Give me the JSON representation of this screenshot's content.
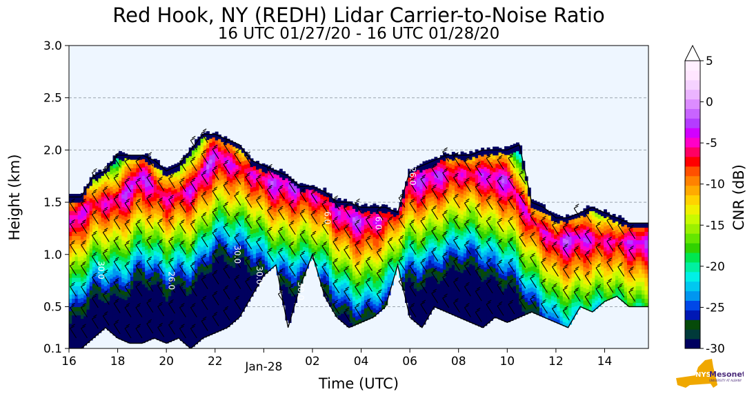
{
  "chart_data": {
    "type": "heatmap",
    "title": "Red Hook, NY (REDH) Lidar Carrier-to-Noise Ratio",
    "subtitle": "16 UTC 01/27/20 - 16 UTC 01/28/20",
    "xlabel": "Time (UTC)",
    "ylabel": "Height (km)",
    "x_ticks": [
      "16",
      "18",
      "20",
      "22",
      "Jan-28",
      "02",
      "04",
      "06",
      "08",
      "10",
      "12",
      "14"
    ],
    "x_tick_hours": [
      16,
      18,
      20,
      22,
      24,
      26,
      28,
      30,
      32,
      34,
      36,
      38
    ],
    "xlim_hours": [
      16,
      39.8
    ],
    "y_ticks": [
      "0.1",
      "0.5",
      "1.0",
      "1.5",
      "2.0",
      "2.5",
      "3.0"
    ],
    "y_tick_values": [
      0.1,
      0.5,
      1.0,
      1.5,
      2.0,
      2.5,
      3.0
    ],
    "ylim": [
      0.1,
      3.0
    ],
    "grid": "horizontal dashed",
    "colorbar": {
      "label": "CNR (dB)",
      "range": [
        -30,
        5
      ],
      "ticks": [
        "5",
        "0",
        "-5",
        "-10",
        "-15",
        "-20",
        "-25",
        "-30"
      ],
      "tick_values": [
        5,
        0,
        -5,
        -10,
        -15,
        -20,
        -25,
        -30
      ],
      "colors": [
        "#00005f",
        "#003a3a",
        "#064a0a",
        "#0018b4",
        "#0048e8",
        "#0096f0",
        "#00c8f0",
        "#00f0e6",
        "#00f0a0",
        "#00e650",
        "#30d200",
        "#64e600",
        "#9bf000",
        "#c8fa00",
        "#f0f000",
        "#ffd200",
        "#ffaa00",
        "#ff8200",
        "#ff5000",
        "#ff0000",
        "#ff0064",
        "#ff00c8",
        "#d200ff",
        "#b43cff",
        "#c864ff",
        "#dc8cff",
        "#ebb4ff",
        "#f5d2ff",
        "#ffe6ff",
        "#fff0ff"
      ]
    },
    "contour_labels": [
      "30.0",
      "26.0",
      "30.0",
      "30.0",
      "30.0",
      "6.0",
      "26.0",
      "6.0"
    ],
    "layer_top_km": [
      [
        16.0,
        1.55
      ],
      [
        16.5,
        1.55
      ],
      [
        17.0,
        1.75
      ],
      [
        17.5,
        1.8
      ],
      [
        18.0,
        1.95
      ],
      [
        18.5,
        1.95
      ],
      [
        19.0,
        1.95
      ],
      [
        19.5,
        1.9
      ],
      [
        20.0,
        1.8
      ],
      [
        20.5,
        1.85
      ],
      [
        21.0,
        2.0
      ],
      [
        21.5,
        2.15
      ],
      [
        22.0,
        2.15
      ],
      [
        22.5,
        2.1
      ],
      [
        23.0,
        2.05
      ],
      [
        23.5,
        1.9
      ],
      [
        24.0,
        1.85
      ],
      [
        24.5,
        1.8
      ],
      [
        25.0,
        1.75
      ],
      [
        25.5,
        1.65
      ],
      [
        26.0,
        1.65
      ],
      [
        26.5,
        1.6
      ],
      [
        27.0,
        1.5
      ],
      [
        27.5,
        1.5
      ],
      [
        28.0,
        1.45
      ],
      [
        28.5,
        1.45
      ],
      [
        29.0,
        1.45
      ],
      [
        29.5,
        1.4
      ],
      [
        30.0,
        1.8
      ],
      [
        30.5,
        1.85
      ],
      [
        31.0,
        1.9
      ],
      [
        31.5,
        1.95
      ],
      [
        32.0,
        1.95
      ],
      [
        32.5,
        1.95
      ],
      [
        33.0,
        2.0
      ],
      [
        33.5,
        2.0
      ],
      [
        34.0,
        2.0
      ],
      [
        34.5,
        2.05
      ],
      [
        35.0,
        1.5
      ],
      [
        35.5,
        1.45
      ],
      [
        36.0,
        1.35
      ],
      [
        36.5,
        1.35
      ],
      [
        37.0,
        1.4
      ],
      [
        37.5,
        1.45
      ],
      [
        38.0,
        1.4
      ],
      [
        38.5,
        1.35
      ],
      [
        39.0,
        1.3
      ],
      [
        39.8,
        1.3
      ]
    ],
    "layer_bottom_km": [
      [
        16.0,
        0.1
      ],
      [
        16.5,
        0.1
      ],
      [
        17.0,
        0.2
      ],
      [
        17.5,
        0.3
      ],
      [
        18.0,
        0.2
      ],
      [
        18.5,
        0.15
      ],
      [
        19.0,
        0.15
      ],
      [
        19.5,
        0.2
      ],
      [
        20.0,
        0.15
      ],
      [
        20.5,
        0.2
      ],
      [
        21.0,
        0.1
      ],
      [
        21.5,
        0.2
      ],
      [
        22.0,
        0.25
      ],
      [
        22.5,
        0.3
      ],
      [
        23.0,
        0.4
      ],
      [
        23.5,
        0.6
      ],
      [
        24.0,
        0.8
      ],
      [
        24.5,
        0.9
      ],
      [
        25.0,
        0.3
      ],
      [
        25.5,
        0.7
      ],
      [
        26.0,
        1.0
      ],
      [
        26.5,
        0.6
      ],
      [
        27.0,
        0.4
      ],
      [
        27.5,
        0.3
      ],
      [
        28.0,
        0.35
      ],
      [
        28.5,
        0.4
      ],
      [
        29.0,
        0.5
      ],
      [
        29.5,
        0.9
      ],
      [
        30.0,
        0.4
      ],
      [
        30.5,
        0.3
      ],
      [
        31.0,
        0.5
      ],
      [
        31.5,
        0.45
      ],
      [
        32.0,
        0.4
      ],
      [
        32.5,
        0.35
      ],
      [
        33.0,
        0.3
      ],
      [
        33.5,
        0.4
      ],
      [
        34.0,
        0.35
      ],
      [
        34.5,
        0.4
      ],
      [
        35.0,
        0.45
      ],
      [
        35.5,
        0.4
      ],
      [
        36.0,
        0.35
      ],
      [
        36.5,
        0.3
      ],
      [
        37.0,
        0.5
      ],
      [
        37.5,
        0.45
      ],
      [
        38.0,
        0.55
      ],
      [
        38.5,
        0.6
      ],
      [
        39.0,
        0.5
      ],
      [
        39.8,
        0.5
      ]
    ],
    "peak_layer_km": [
      [
        16.0,
        1.3
      ],
      [
        17.0,
        1.45
      ],
      [
        18.0,
        1.5
      ],
      [
        19.0,
        1.75
      ],
      [
        20.0,
        1.5
      ],
      [
        21.0,
        1.6
      ],
      [
        22.0,
        1.95
      ],
      [
        23.0,
        1.8
      ],
      [
        24.0,
        1.7
      ],
      [
        25.0,
        1.65
      ],
      [
        26.0,
        1.55
      ],
      [
        27.0,
        1.4
      ],
      [
        28.0,
        1.3
      ],
      [
        29.0,
        1.3
      ],
      [
        30.0,
        1.65
      ],
      [
        31.0,
        1.75
      ],
      [
        32.0,
        1.75
      ],
      [
        33.0,
        1.75
      ],
      [
        34.0,
        1.7
      ],
      [
        35.0,
        1.3
      ],
      [
        36.0,
        1.1
      ],
      [
        37.0,
        1.15
      ],
      [
        38.0,
        1.1
      ],
      [
        39.0,
        1.1
      ],
      [
        39.8,
        1.1
      ]
    ]
  },
  "logo": {
    "text": "NYS",
    "name": "Mesonet",
    "sub": "UNIVERSITY AT ALBANY"
  },
  "colors": {
    "plot_background": "#eef6ff",
    "grid": "#9aa3ad"
  }
}
